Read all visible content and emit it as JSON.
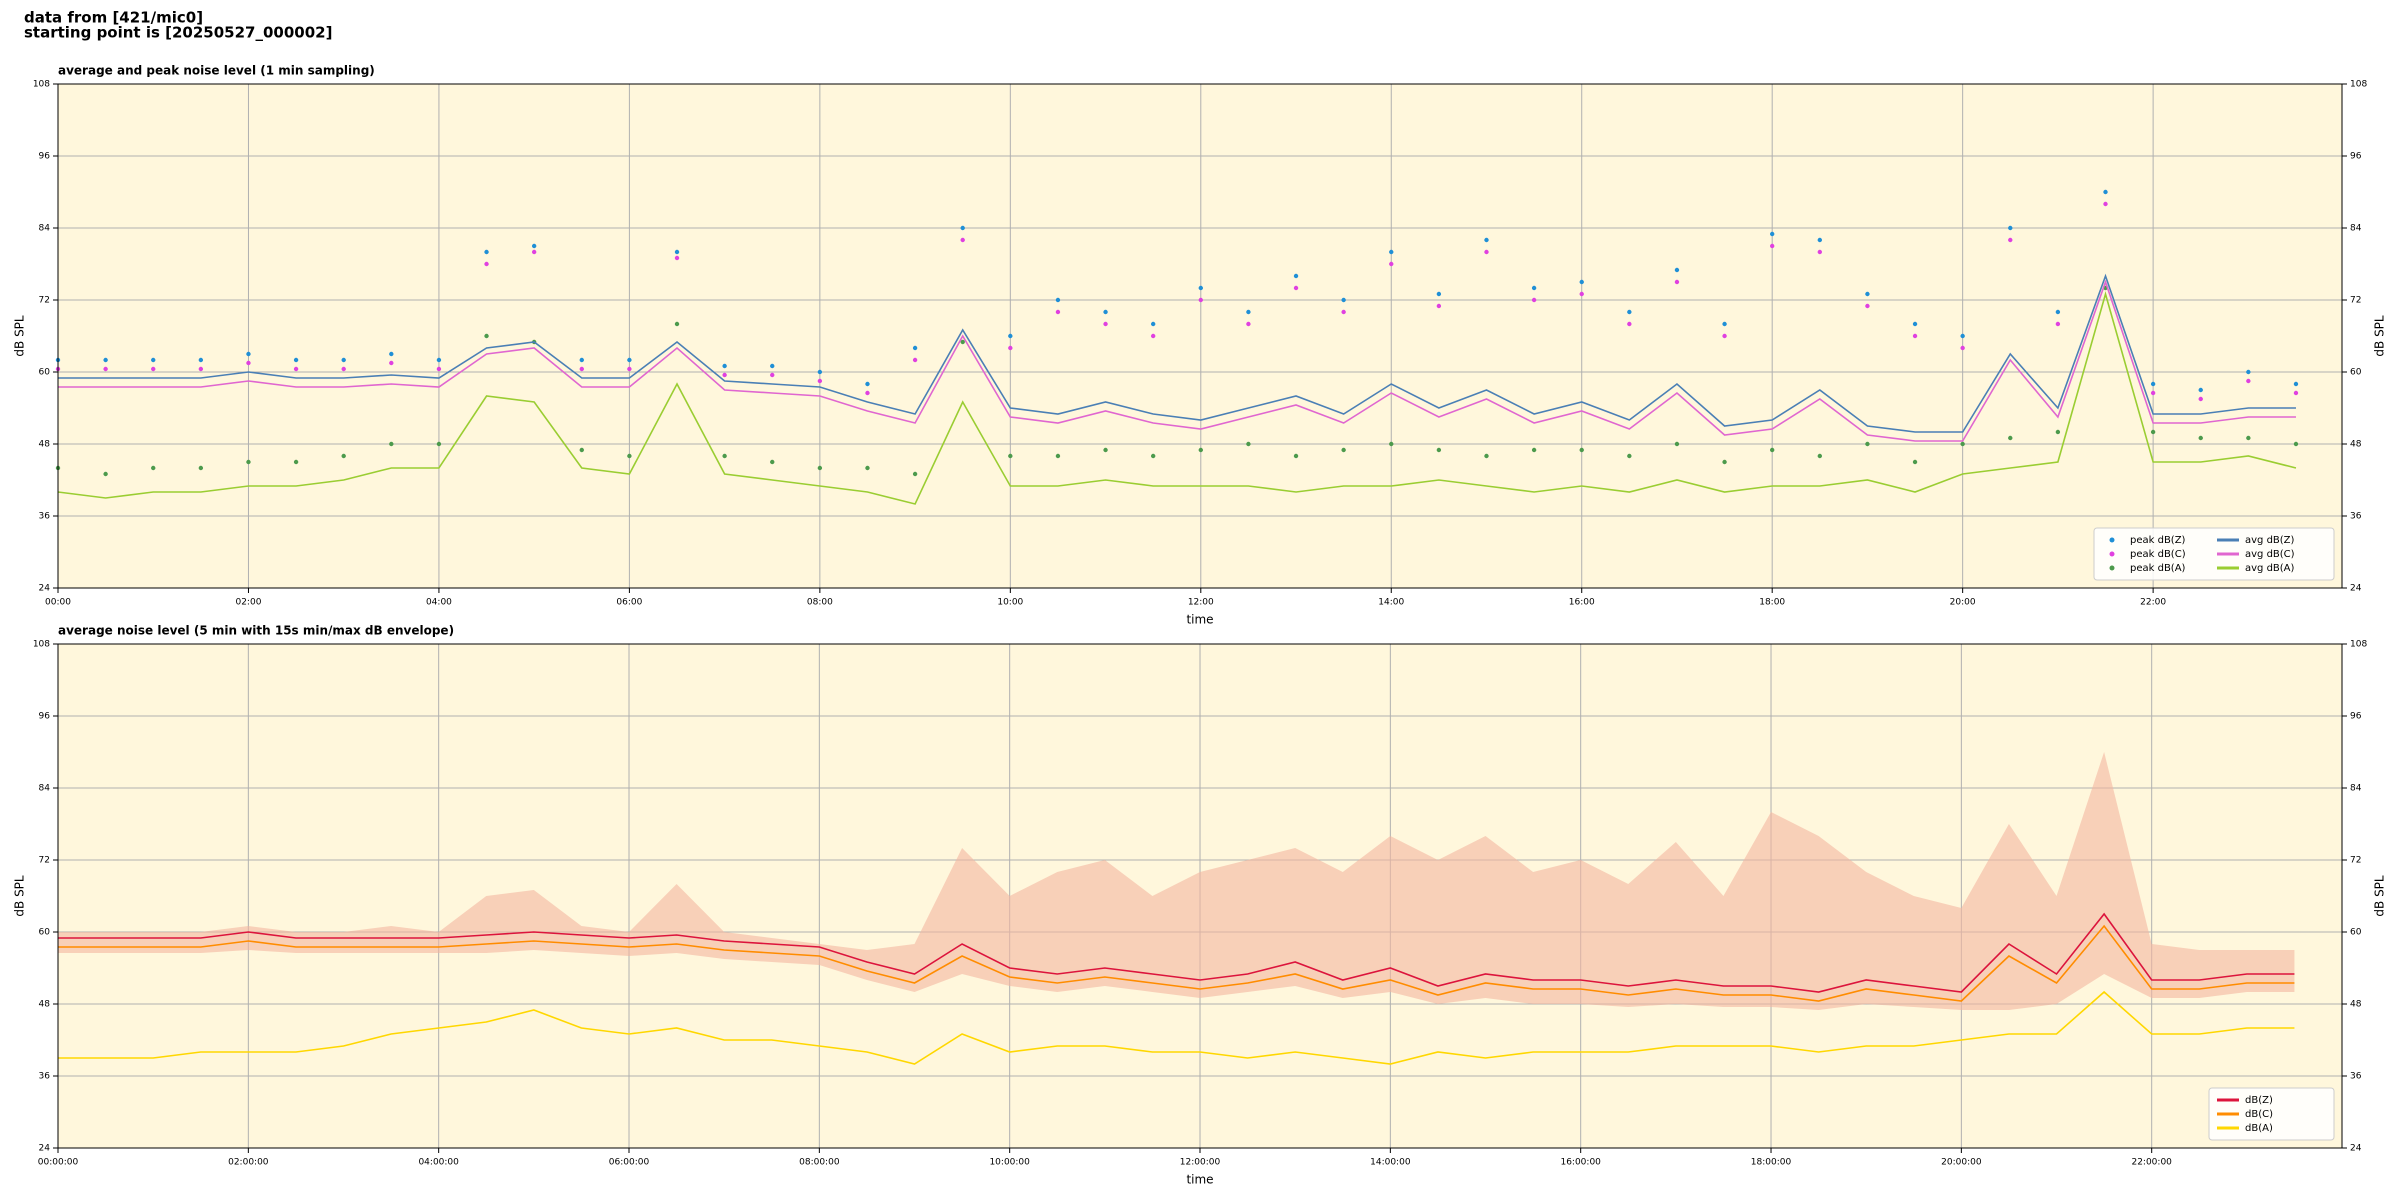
{
  "header": {
    "line1": "data from [421/mic0]",
    "line2": "starting point is [20250527_000002]"
  },
  "chart_data": [
    {
      "type": "line",
      "title": "average and peak noise level (1 min sampling)",
      "xlabel": "time",
      "ylabel": "dB SPL",
      "x": [
        "00:00",
        "00:30",
        "01:00",
        "01:30",
        "02:00",
        "02:30",
        "03:00",
        "03:30",
        "04:00",
        "04:30",
        "05:00",
        "05:30",
        "06:00",
        "06:30",
        "07:00",
        "07:30",
        "08:00",
        "08:30",
        "09:00",
        "09:30",
        "10:00",
        "10:30",
        "11:00",
        "11:30",
        "12:00",
        "12:30",
        "13:00",
        "13:30",
        "14:00",
        "14:30",
        "15:00",
        "15:30",
        "16:00",
        "16:30",
        "17:00",
        "17:30",
        "18:00",
        "18:30",
        "19:00",
        "19:30",
        "20:00",
        "20:30",
        "21:00",
        "21:30",
        "22:00",
        "22:30",
        "23:00",
        "23:30"
      ],
      "xlim": [
        "00:00",
        "23:59"
      ],
      "xticks": [
        "00:00",
        "02:00",
        "04:00",
        "06:00",
        "08:00",
        "10:00",
        "12:00",
        "14:00",
        "16:00",
        "18:00",
        "20:00",
        "22:00"
      ],
      "ylim": [
        24,
        108
      ],
      "yticks": [
        24,
        36,
        48,
        60,
        72,
        84,
        96,
        108
      ],
      "grid": true,
      "legend": "lower right",
      "background": "#fff7dc",
      "series": [
        {
          "name": "peak dB(Z)",
          "style": "points",
          "color": "#1f8fd6",
          "values": [
            62,
            62,
            62,
            62,
            63,
            62,
            62,
            63,
            62,
            80,
            81,
            62,
            62,
            80,
            61,
            61,
            60,
            58,
            64,
            84,
            66,
            72,
            70,
            68,
            74,
            70,
            76,
            72,
            80,
            73,
            82,
            74,
            75,
            70,
            77,
            68,
            83,
            82,
            73,
            68,
            66,
            84,
            70,
            90,
            58,
            57,
            60,
            58
          ]
        },
        {
          "name": "peak dB(C)",
          "style": "points",
          "color": "#e040e0",
          "values": [
            60.5,
            60.5,
            60.5,
            60.5,
            61.5,
            60.5,
            60.5,
            61.5,
            60.5,
            78,
            80,
            60.5,
            60.5,
            79,
            59.5,
            59.5,
            58.5,
            56.5,
            62,
            82,
            64,
            70,
            68,
            66,
            72,
            68,
            74,
            70,
            78,
            71,
            80,
            72,
            73,
            68,
            75,
            66,
            81,
            80,
            71,
            66,
            64,
            82,
            68,
            88,
            56.5,
            55.5,
            58.5,
            56.5
          ]
        },
        {
          "name": "peak dB(A)",
          "style": "points",
          "color": "#4c9a4c",
          "values": [
            44,
            43,
            44,
            44,
            45,
            45,
            46,
            48,
            48,
            66,
            65,
            47,
            46,
            68,
            46,
            45,
            44,
            44,
            43,
            65,
            46,
            46,
            47,
            46,
            47,
            48,
            46,
            47,
            48,
            47,
            46,
            47,
            47,
            46,
            48,
            45,
            47,
            46,
            48,
            45,
            48,
            49,
            50,
            74,
            50,
            49,
            49,
            48
          ]
        },
        {
          "name": "avg dB(Z)",
          "style": "line",
          "color": "#4a7fb5",
          "values": [
            59,
            59,
            59,
            59,
            60,
            59,
            59,
            59.5,
            59,
            64,
            65,
            59,
            59,
            65,
            58.5,
            58,
            57.5,
            55,
            53,
            67,
            54,
            53,
            55,
            53,
            52,
            54,
            56,
            53,
            58,
            54,
            57,
            53,
            55,
            52,
            58,
            51,
            52,
            57,
            51,
            50,
            50,
            63,
            54,
            76,
            53,
            53,
            54,
            54
          ]
        },
        {
          "name": "avg dB(C)",
          "style": "line",
          "color": "#e066d0",
          "values": [
            57.5,
            57.5,
            57.5,
            57.5,
            58.5,
            57.5,
            57.5,
            58,
            57.5,
            63,
            64,
            57.5,
            57.5,
            64,
            57,
            56.5,
            56,
            53.5,
            51.5,
            66,
            52.5,
            51.5,
            53.5,
            51.5,
            50.5,
            52.5,
            54.5,
            51.5,
            56.5,
            52.5,
            55.5,
            51.5,
            53.5,
            50.5,
            56.5,
            49.5,
            50.5,
            55.5,
            49.5,
            48.5,
            48.5,
            62,
            52.5,
            75,
            51.5,
            51.5,
            52.5,
            52.5
          ]
        },
        {
          "name": "avg dB(A)",
          "style": "line",
          "color": "#9acd32",
          "values": [
            40,
            39,
            40,
            40,
            41,
            41,
            42,
            44,
            44,
            56,
            55,
            44,
            43,
            58,
            43,
            42,
            41,
            40,
            38,
            55,
            41,
            41,
            42,
            41,
            41,
            41,
            40,
            41,
            41,
            42,
            41,
            40,
            41,
            40,
            42,
            40,
            41,
            41,
            42,
            40,
            43,
            44,
            45,
            73,
            45,
            45,
            46,
            44
          ]
        }
      ]
    },
    {
      "type": "line",
      "title": "average noise level (5 min with 15s min/max dB envelope)",
      "xlabel": "time",
      "ylabel": "dB SPL",
      "x": [
        "00:00:00",
        "00:30:00",
        "01:00:00",
        "01:30:00",
        "02:00:00",
        "02:30:00",
        "03:00:00",
        "03:30:00",
        "04:00:00",
        "04:30:00",
        "05:00:00",
        "05:30:00",
        "06:00:00",
        "06:30:00",
        "07:00:00",
        "07:30:00",
        "08:00:00",
        "08:30:00",
        "09:00:00",
        "09:30:00",
        "10:00:00",
        "10:30:00",
        "11:00:00",
        "11:30:00",
        "12:00:00",
        "12:30:00",
        "13:00:00",
        "13:30:00",
        "14:00:00",
        "14:30:00",
        "15:00:00",
        "15:30:00",
        "16:00:00",
        "16:30:00",
        "17:00:00",
        "17:30:00",
        "18:00:00",
        "18:30:00",
        "19:00:00",
        "19:30:00",
        "20:00:00",
        "20:30:00",
        "21:00:00",
        "21:30:00",
        "22:00:00",
        "22:30:00",
        "23:00:00",
        "23:30:00"
      ],
      "xlim": [
        "00:00:00",
        "23:59:59"
      ],
      "xticks": [
        "00:00:00",
        "02:00:00",
        "04:00:00",
        "06:00:00",
        "08:00:00",
        "10:00:00",
        "12:00:00",
        "14:00:00",
        "16:00:00",
        "18:00:00",
        "20:00:00",
        "22:00:00"
      ],
      "ylim": [
        24,
        108
      ],
      "yticks": [
        24,
        36,
        48,
        60,
        72,
        84,
        96,
        108
      ],
      "grid": true,
      "legend": "lower right",
      "background": "#fff7dc",
      "envelope": {
        "color": "#f4b6a0",
        "high": [
          60,
          60,
          60,
          60,
          61,
          60,
          60,
          61,
          60,
          66,
          67,
          61,
          60,
          68,
          60,
          59,
          58,
          57,
          58,
          74,
          66,
          70,
          72,
          66,
          70,
          72,
          74,
          70,
          76,
          72,
          76,
          70,
          72,
          68,
          75,
          66,
          80,
          76,
          70,
          66,
          64,
          78,
          66,
          90,
          58,
          57,
          57,
          57
        ],
        "low": [
          56.5,
          56.5,
          56.5,
          56.5,
          57,
          56.5,
          56.5,
          56.5,
          56.5,
          56.5,
          57,
          56.5,
          56,
          56.5,
          55.5,
          55,
          54.5,
          52,
          50,
          53,
          51,
          50,
          51,
          50,
          49,
          50,
          51,
          49,
          50,
          48,
          49,
          48,
          48,
          47.5,
          48,
          47.5,
          47.5,
          47,
          48,
          47.5,
          47,
          47,
          48,
          53,
          49,
          49,
          50,
          50
        ]
      },
      "series": [
        {
          "name": "dB(Z)",
          "style": "line",
          "color": "#dc143c",
          "values": [
            59,
            59,
            59,
            59,
            60,
            59,
            59,
            59,
            59,
            59.5,
            60,
            59.5,
            59,
            59.5,
            58.5,
            58,
            57.5,
            55,
            53,
            58,
            54,
            53,
            54,
            53,
            52,
            53,
            55,
            52,
            54,
            51,
            53,
            52,
            52,
            51,
            52,
            51,
            51,
            50,
            52,
            51,
            50,
            58,
            53,
            63,
            52,
            52,
            53,
            53
          ]
        },
        {
          "name": "dB(C)",
          "style": "line",
          "color": "#ff8c00",
          "values": [
            57.5,
            57.5,
            57.5,
            57.5,
            58.5,
            57.5,
            57.5,
            57.5,
            57.5,
            58,
            58.5,
            58,
            57.5,
            58,
            57,
            56.5,
            56,
            53.5,
            51.5,
            56,
            52.5,
            51.5,
            52.5,
            51.5,
            50.5,
            51.5,
            53,
            50.5,
            52,
            49.5,
            51.5,
            50.5,
            50.5,
            49.5,
            50.5,
            49.5,
            49.5,
            48.5,
            50.5,
            49.5,
            48.5,
            56,
            51.5,
            61,
            50.5,
            50.5,
            51.5,
            51.5
          ]
        },
        {
          "name": "dB(A)",
          "style": "line",
          "color": "#ffd700",
          "values": [
            39,
            39,
            39,
            40,
            40,
            40,
            41,
            43,
            44,
            45,
            47,
            44,
            43,
            44,
            42,
            42,
            41,
            40,
            38,
            43,
            40,
            41,
            41,
            40,
            40,
            39,
            40,
            39,
            38,
            40,
            39,
            40,
            40,
            40,
            41,
            41,
            41,
            40,
            41,
            41,
            42,
            43,
            43,
            50,
            43,
            43,
            44,
            44
          ]
        }
      ]
    }
  ]
}
